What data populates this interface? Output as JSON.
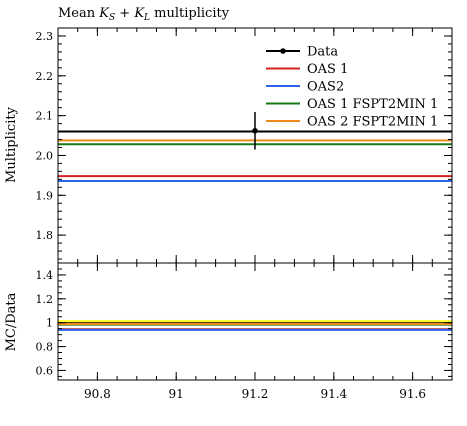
{
  "chart_data": {
    "title": "Mean K_S + K_L multiplicity",
    "title_parts": {
      "prefix": "Mean ",
      "k": "K",
      "sub_s": "S",
      "plus": " + ",
      "sub_l": "L",
      "suffix": " multiplicity"
    },
    "type": "line",
    "xlim": [
      90.7,
      91.7
    ],
    "x_ticks": [
      {
        "value": 90.8,
        "label": "90.8"
      },
      {
        "value": 91.0,
        "label": "91"
      },
      {
        "value": 91.2,
        "label": "91.2"
      },
      {
        "value": 91.4,
        "label": "91.4"
      },
      {
        "value": 91.6,
        "label": "91.6"
      }
    ],
    "x_minor_step": 0.05,
    "main": {
      "ylabel": "Multiplicity",
      "ylim": [
        1.73,
        2.32
      ],
      "y_ticks": [
        {
          "value": 1.8,
          "label": "1.8"
        },
        {
          "value": 1.9,
          "label": "1.9"
        },
        {
          "value": 2.0,
          "label": "2.0"
        },
        {
          "value": 2.1,
          "label": "2.1"
        },
        {
          "value": 2.2,
          "label": "2.2"
        },
        {
          "value": 2.3,
          "label": "2.3"
        }
      ],
      "y_minor_step": 0.02,
      "data": {
        "name": "Data",
        "x": 91.2,
        "y": 2.062,
        "yerr": 0.047,
        "color": "#000000"
      },
      "series": [
        {
          "name": "Data",
          "y": 2.06,
          "color": "#000000"
        },
        {
          "name": "OAS 1",
          "y": 1.948,
          "color": "#d62020"
        },
        {
          "name": "OAS2",
          "y": 1.936,
          "color": "#2a63e6"
        },
        {
          "name": "OAS 1 FSPT2MIN 1",
          "y": 2.028,
          "color": "#1a7a1a"
        },
        {
          "name": "OAS 2 FSPT2MIN 1",
          "y": 2.038,
          "color": "#f08a1a"
        }
      ],
      "legend": {
        "placement": "top-right",
        "entries": [
          {
            "name": "Data",
            "color": "#000000",
            "marker": true
          },
          {
            "name": "OAS 1",
            "color": "#d62020"
          },
          {
            "name": "OAS2",
            "color": "#2a63e6"
          },
          {
            "name": "OAS 1 FSPT2MIN 1",
            "color": "#1a7a1a"
          },
          {
            "name": "OAS 2 FSPT2MIN 1",
            "color": "#f08a1a"
          }
        ]
      }
    },
    "ratio": {
      "ylabel": "MC/Data",
      "ylim": [
        0.52,
        1.5
      ],
      "y_ticks": [
        {
          "value": 0.6,
          "label": "0.6"
        },
        {
          "value": 0.8,
          "label": "0.8"
        },
        {
          "value": 1.0,
          "label": "1"
        },
        {
          "value": 1.2,
          "label": "1.2"
        },
        {
          "value": 1.4,
          "label": "1.4"
        }
      ],
      "y_minor_step": 0.05,
      "band": {
        "low": 0.977,
        "high": 1.023,
        "color": "#ffff33"
      },
      "series": [
        {
          "name": "Data",
          "y": 1.0,
          "color": "#000000"
        },
        {
          "name": "OAS 1",
          "y": 0.945,
          "color": "#d62020"
        },
        {
          "name": "OAS2",
          "y": 0.94,
          "color": "#2a63e6"
        },
        {
          "name": "OAS 1 FSPT2MIN 1",
          "y": 0.984,
          "color": "#1a7a1a"
        },
        {
          "name": "OAS 2 FSPT2MIN 1",
          "y": 0.989,
          "color": "#f08a1a"
        }
      ]
    }
  }
}
